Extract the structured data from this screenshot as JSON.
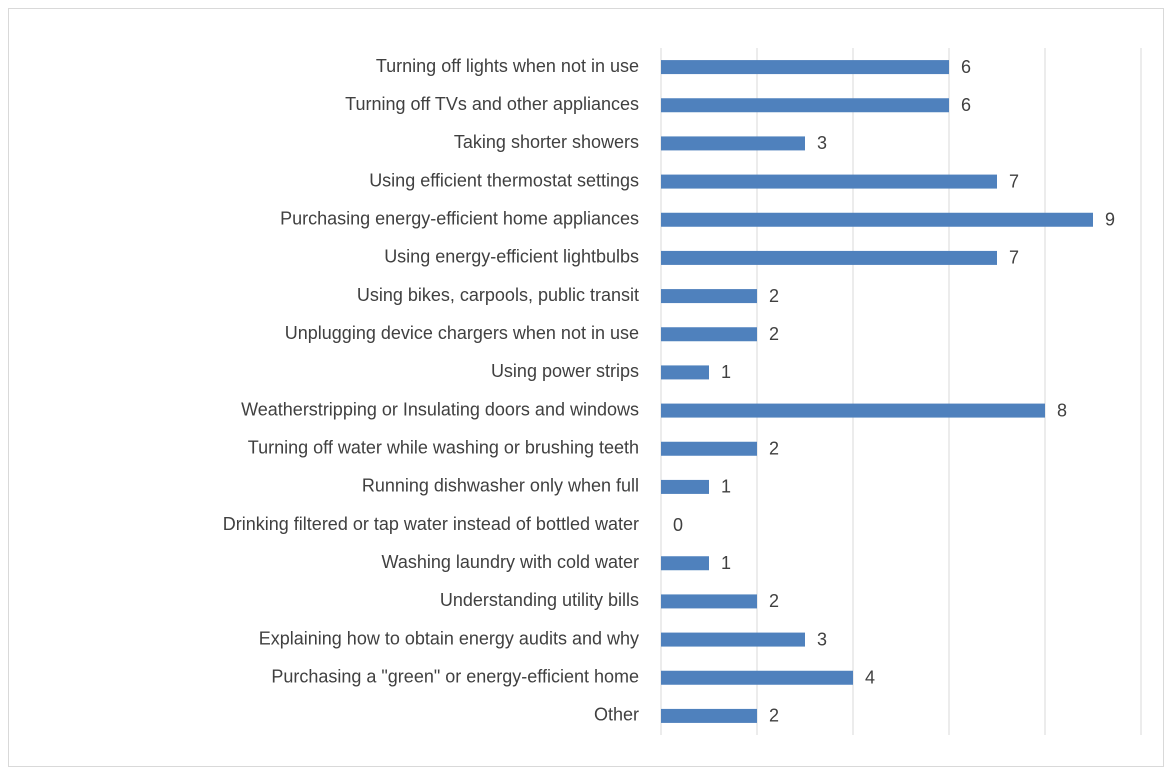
{
  "chart_data": {
    "type": "bar",
    "orientation": "horizontal",
    "categories": [
      "Turning off lights when not in use",
      "Turning off TVs and other appliances",
      "Taking shorter showers",
      "Using efficient thermostat settings",
      "Purchasing energy-efficient home appliances",
      "Using energy-efficient lightbulbs",
      "Using bikes, carpools, public transit",
      "Unplugging device chargers when not in use",
      "Using power strips",
      "Weatherstripping or Insulating doors and windows",
      "Turning off water while washing or brushing teeth",
      "Running dishwasher only when full",
      "Drinking filtered or tap water instead of bottled water",
      "Washing laundry with cold water",
      "Understanding utility bills",
      "Explaining how to obtain energy audits and why",
      "Purchasing a \"green\" or energy-efficient home",
      "Other"
    ],
    "values": [
      6,
      6,
      3,
      7,
      9,
      7,
      2,
      2,
      1,
      8,
      2,
      1,
      0,
      1,
      2,
      3,
      4,
      2
    ],
    "color": "#4f81bd",
    "xlim": [
      0,
      10
    ],
    "xticks": [
      0,
      2,
      4,
      6,
      8,
      10
    ],
    "grid": true
  }
}
